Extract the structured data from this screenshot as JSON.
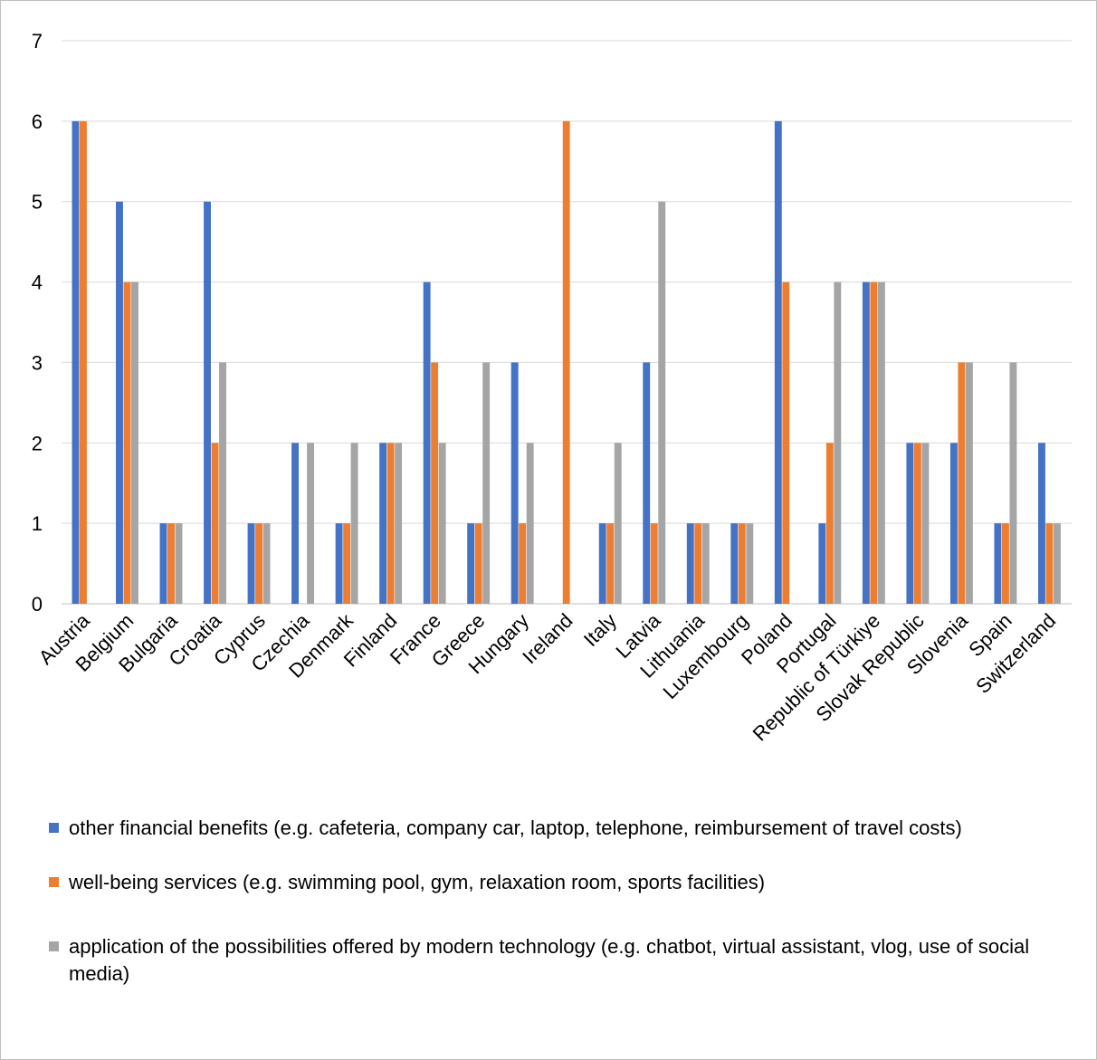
{
  "chart_data": {
    "type": "bar",
    "categories": [
      "Austria",
      "Belgium",
      "Bulgaria",
      "Croatia",
      "Cyprus",
      "Czechia",
      "Denmark",
      "Finland",
      "France",
      "Greece",
      "Hungary",
      "Ireland",
      "Italy",
      "Latvia",
      "Lithuania",
      "Luxembourg",
      "Poland",
      "Portugal",
      "Republic of Türkiye",
      "Slovak Republic",
      "Slovenia",
      "Spain",
      "Switzerland"
    ],
    "series": [
      {
        "name": "other financial benefits (e.g. cafeteria, company car, laptop, telephone, reimbursement of travel costs)",
        "color": "#4472c4",
        "values": [
          6,
          5,
          1,
          5,
          1,
          2,
          1,
          2,
          4,
          1,
          3,
          0,
          1,
          3,
          1,
          1,
          6,
          1,
          4,
          2,
          2,
          1,
          2
        ]
      },
      {
        "name": "well-being services (e.g. swimming pool, gym, relaxation room, sports facilities)",
        "color": "#ed7d31",
        "values": [
          6,
          4,
          1,
          2,
          1,
          0,
          1,
          2,
          3,
          1,
          1,
          6,
          1,
          1,
          1,
          1,
          4,
          2,
          4,
          2,
          3,
          1,
          1
        ]
      },
      {
        "name": "application of the possibilities offered by modern technology (e.g. chatbot, virtual assistant, vlog, use of social media)",
        "color": "#a5a5a5",
        "values": [
          0,
          4,
          1,
          3,
          1,
          2,
          2,
          2,
          2,
          3,
          2,
          0,
          2,
          5,
          1,
          1,
          0,
          4,
          4,
          2,
          3,
          3,
          1
        ]
      }
    ],
    "yticks": [
      "0",
      "1",
      "2",
      "3",
      "4",
      "5",
      "6",
      "7"
    ],
    "ylim": [
      0,
      7
    ],
    "grid": true,
    "legend_position": "bottom"
  }
}
